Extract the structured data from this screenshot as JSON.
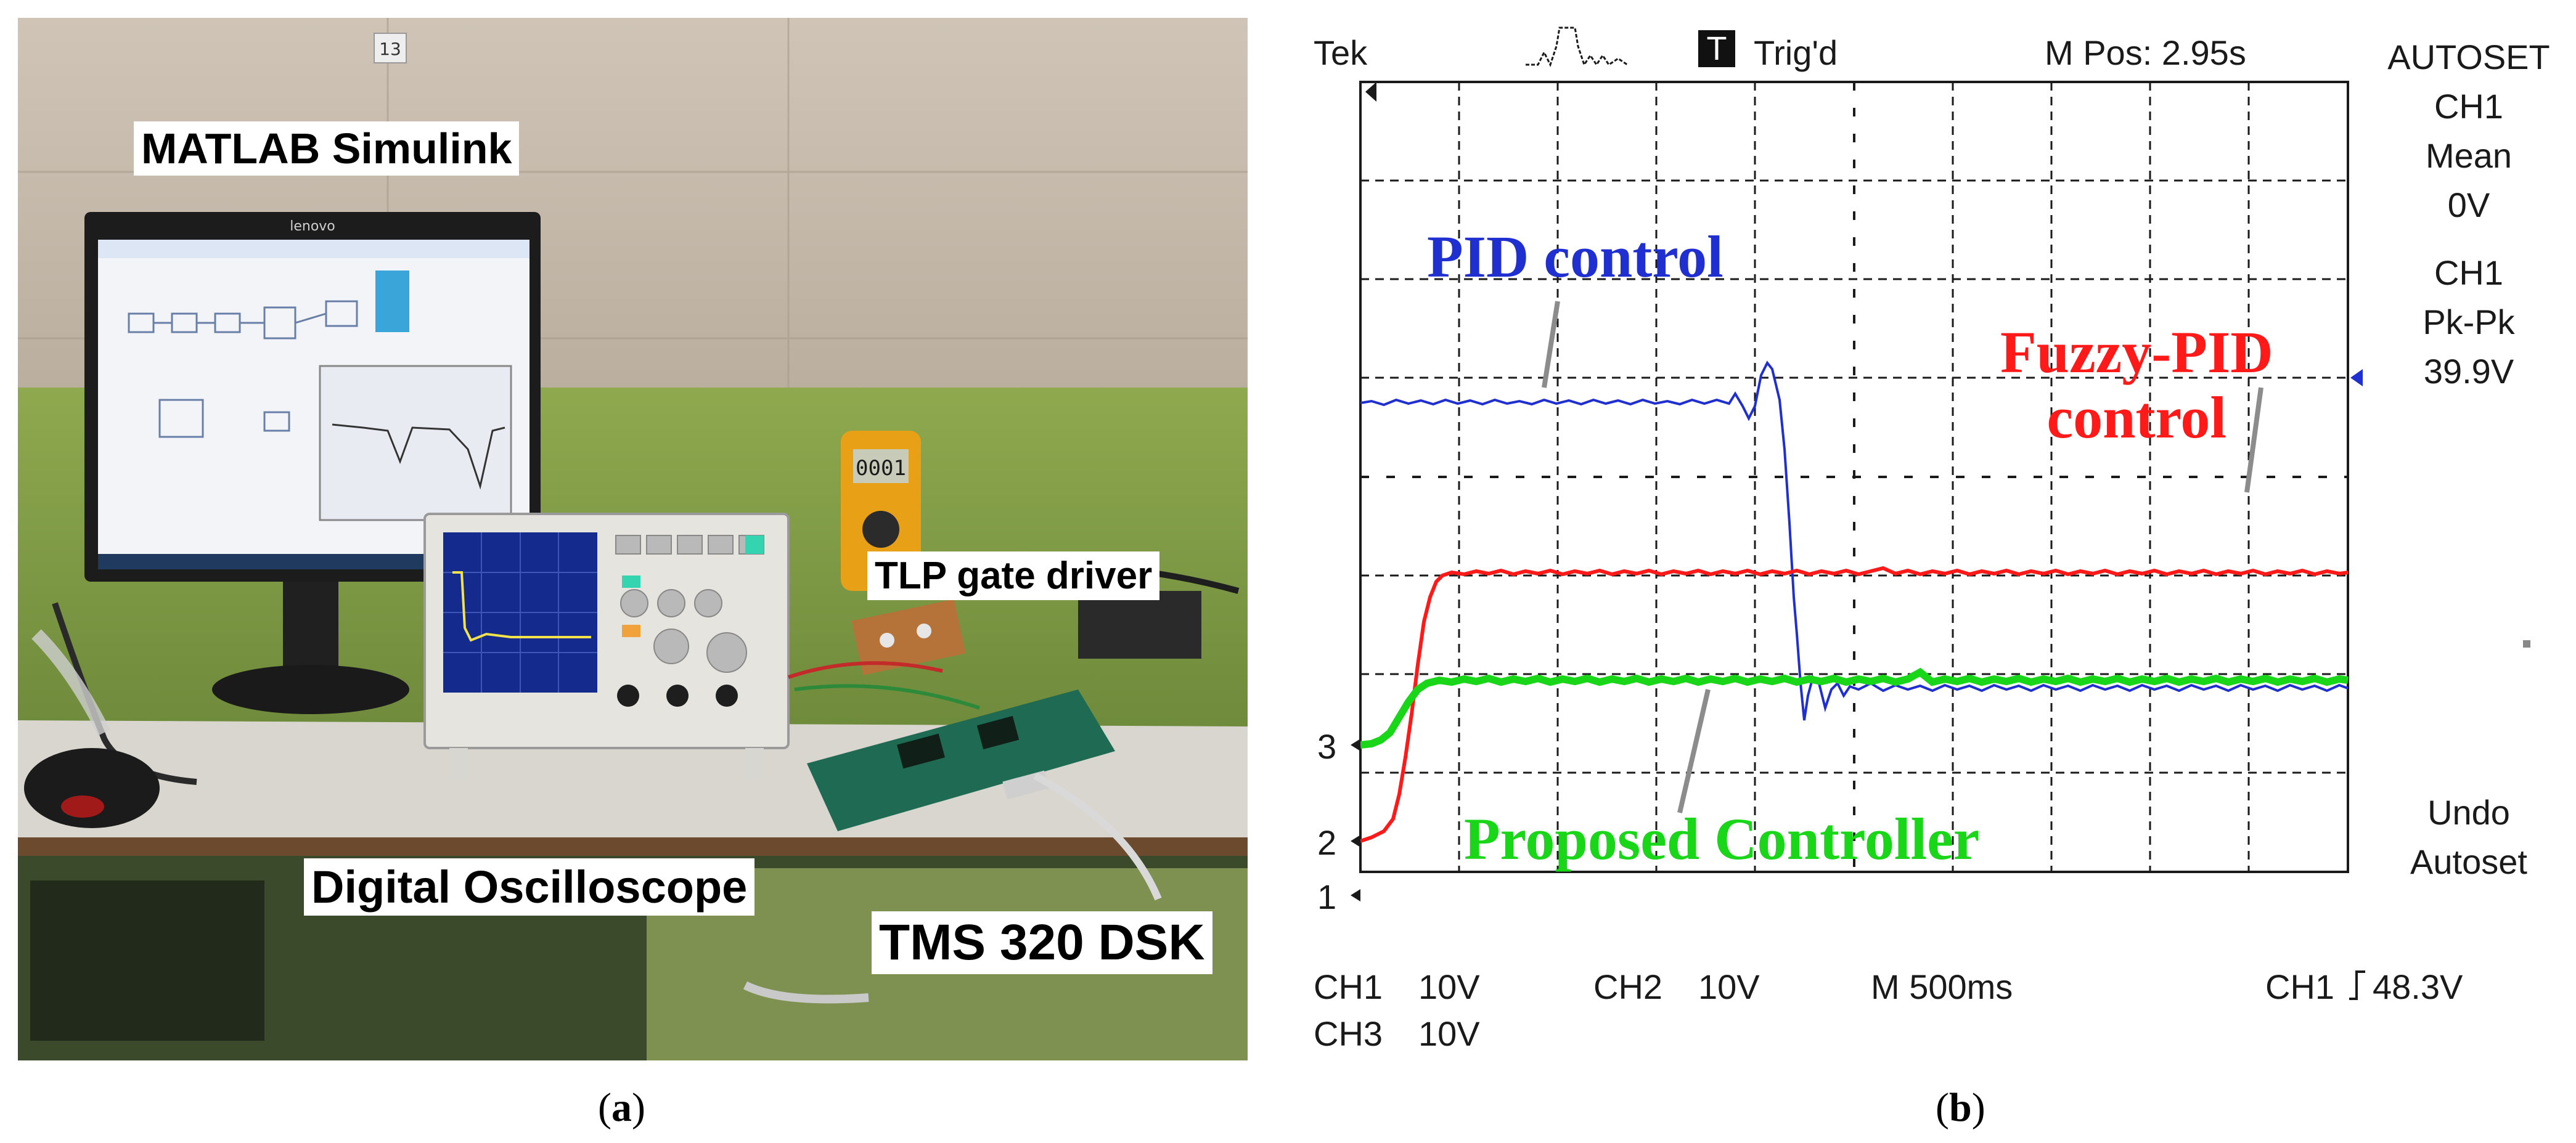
{
  "panel_a": {
    "labels": {
      "matlab": "MATLAB Simulink",
      "tlp": "TLP gate driver",
      "oscilloscope": "Digital Oscilloscope",
      "tms": "TMS 320 DSK"
    },
    "wall_tag": "13",
    "monitor_brand": "lenovo",
    "multimeter_display": "0001"
  },
  "panel_b": {
    "top_bar": {
      "brand": "Tek",
      "trigger_letter": "T",
      "trigger_status": "Trig'd",
      "m_pos": "M Pos: 2.95s"
    },
    "side_panel": {
      "autoset": "AUTOSET",
      "ch1_a": "CH1",
      "mean": "Mean",
      "mean_value": "0V",
      "ch1_b": "CH1",
      "pkpk": "Pk-Pk",
      "pkpk_value": "39.9V",
      "undo": "Undo",
      "autoset2": "Autoset"
    },
    "markers": {
      "ch3": "3",
      "ch2": "2",
      "ch1": "1"
    },
    "annotations": {
      "pid": "PID control",
      "fuzzy_line1": "Fuzzy-PID",
      "fuzzy_line2": "control",
      "proposed": "Proposed Controller"
    },
    "annotation_colors": {
      "pid": "#1f2fd0",
      "fuzzy": "#ff1a1a",
      "proposed": "#19d619"
    },
    "bottom_bar": {
      "ch1": "CH1",
      "ch1_scale": "10V",
      "ch2": "CH2",
      "ch2_scale": "10V",
      "timebase": "M 500ms",
      "trigger_src": "CH1",
      "trigger_level": "48.3V",
      "ch3": "CH3",
      "ch3_scale": "10V"
    }
  },
  "captions": {
    "a": "a",
    "b": "b"
  }
}
